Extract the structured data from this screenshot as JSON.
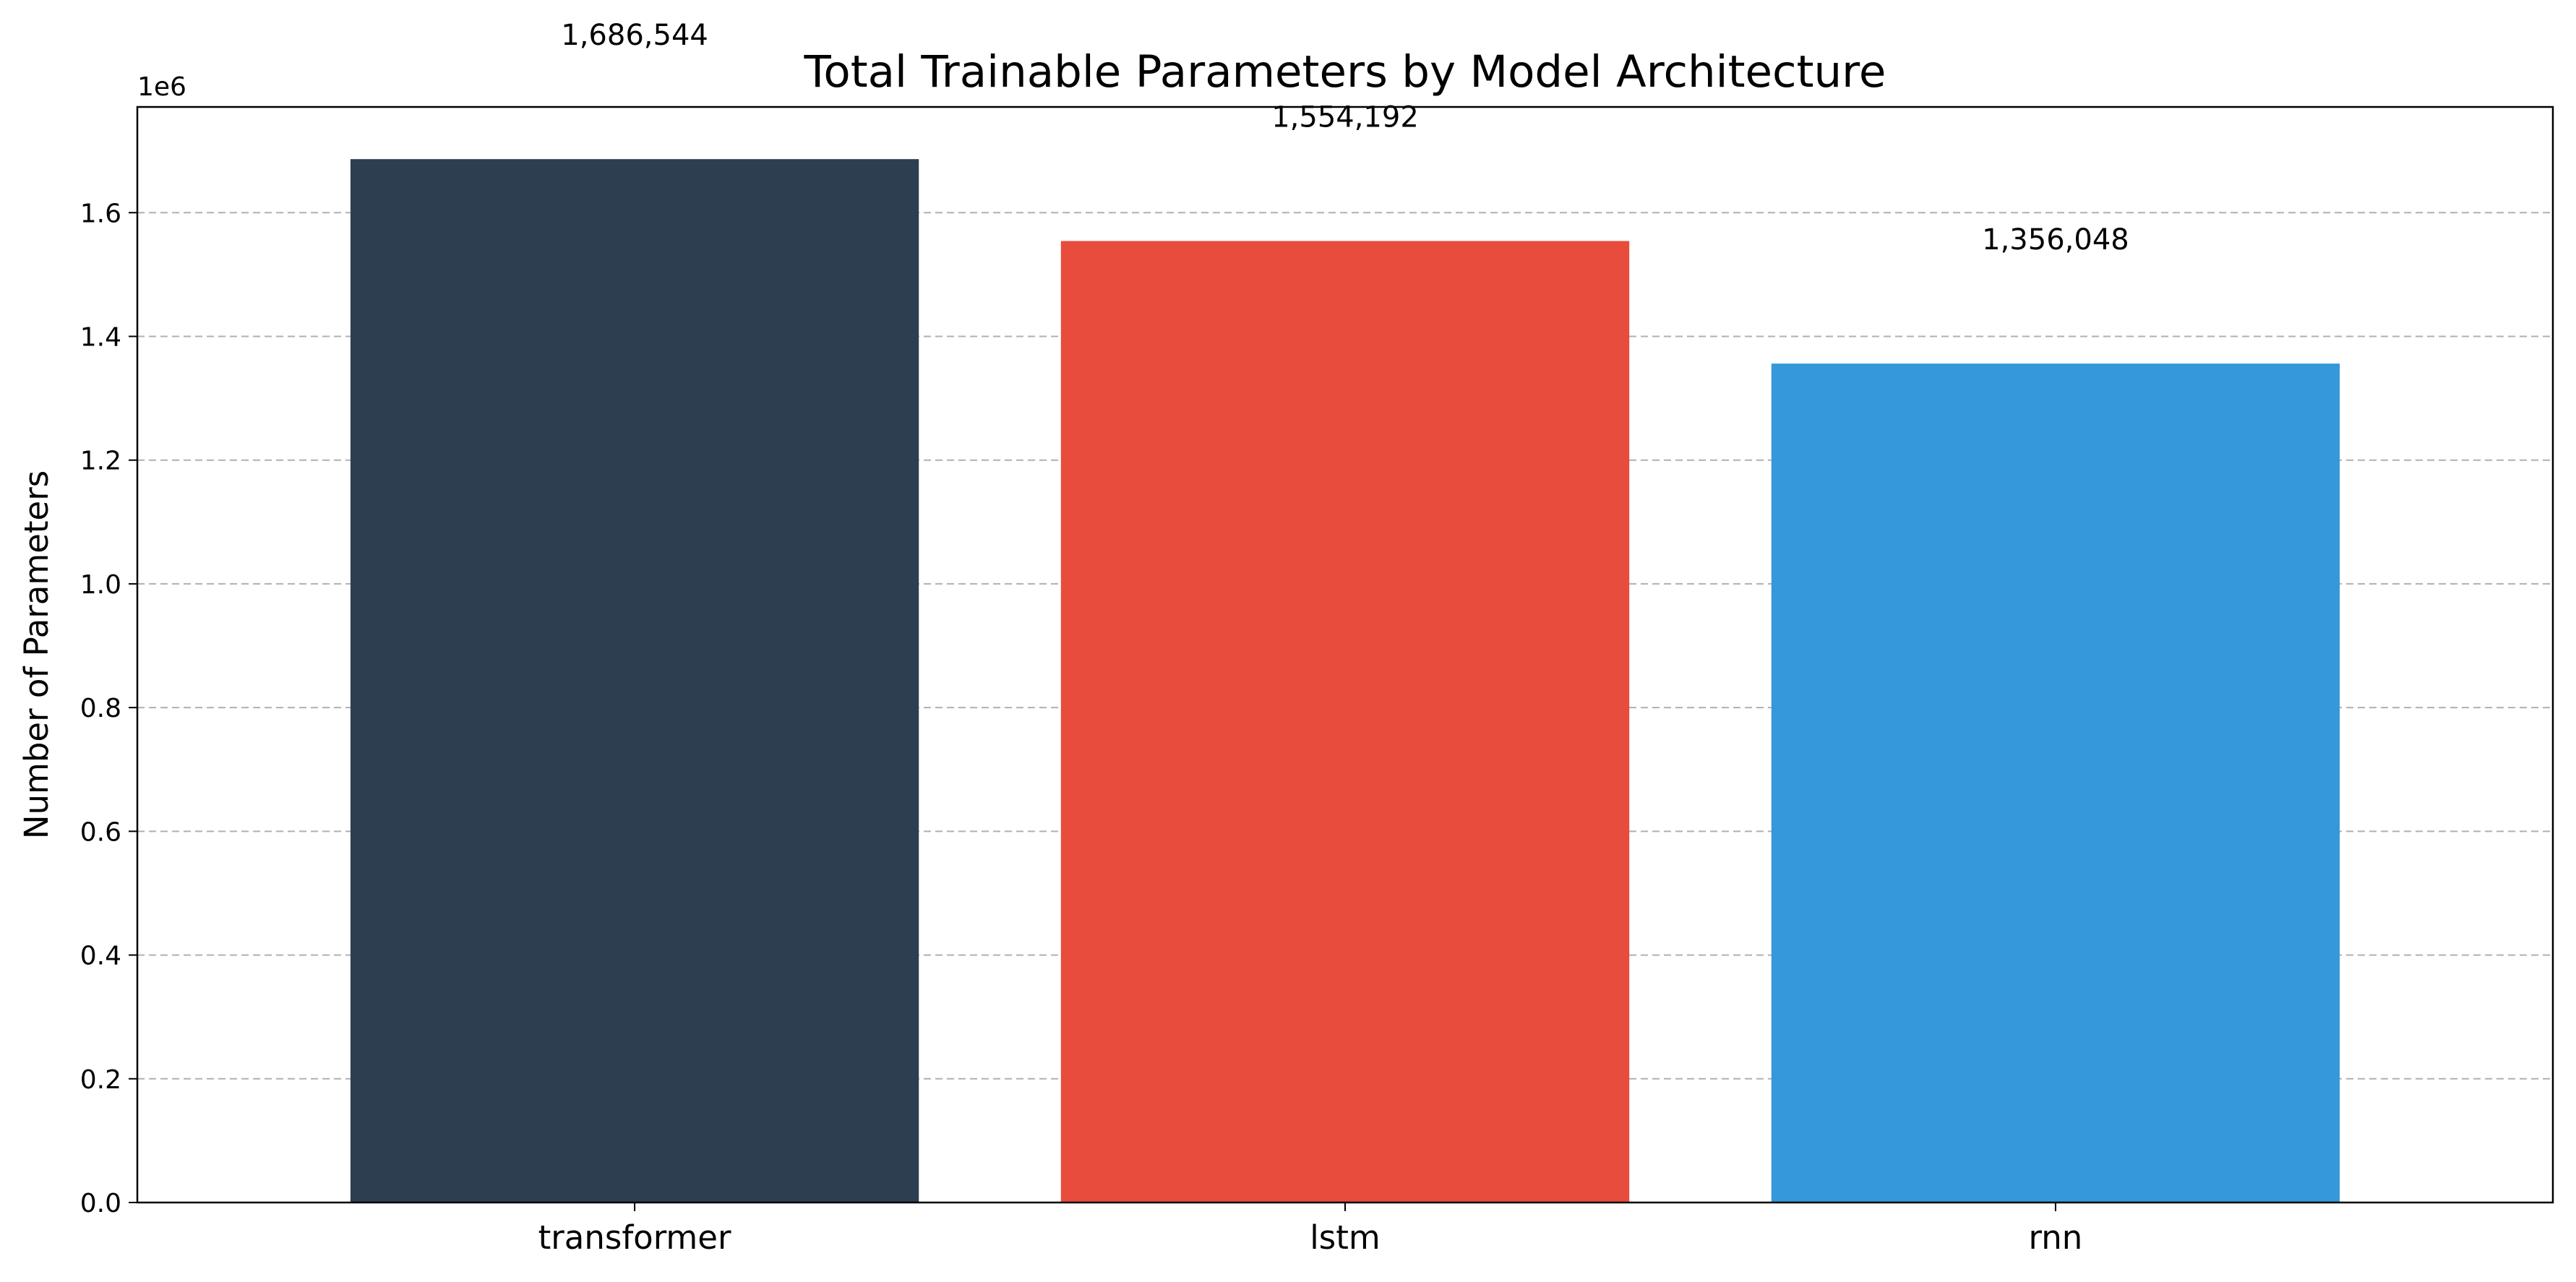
{
  "chart_data": {
    "type": "bar",
    "title": "Total Trainable Parameters by Model Architecture",
    "xlabel": "",
    "ylabel": "Number of Parameters",
    "categories": [
      "transformer",
      "lstm",
      "rnn"
    ],
    "values": [
      1686544,
      1554192,
      1356048
    ],
    "value_labels": [
      "1,686,544",
      "1,554,192",
      "1,356,048"
    ],
    "colors": [
      "#2c3e50",
      "#e74c3c",
      "#3498db"
    ],
    "ylim": [
      0,
      1770871
    ],
    "y_ticks": [
      0,
      200000,
      400000,
      600000,
      800000,
      1000000,
      1200000,
      1400000,
      1600000
    ],
    "y_tick_labels": [
      "0.0",
      "0.2",
      "0.4",
      "0.6",
      "0.8",
      "1.0",
      "1.2",
      "1.4",
      "1.6"
    ],
    "y_offset_label": "1e6",
    "grid": {
      "axis": "y",
      "style": "dashed",
      "color": "#b0b0b0"
    },
    "legend": "none"
  }
}
